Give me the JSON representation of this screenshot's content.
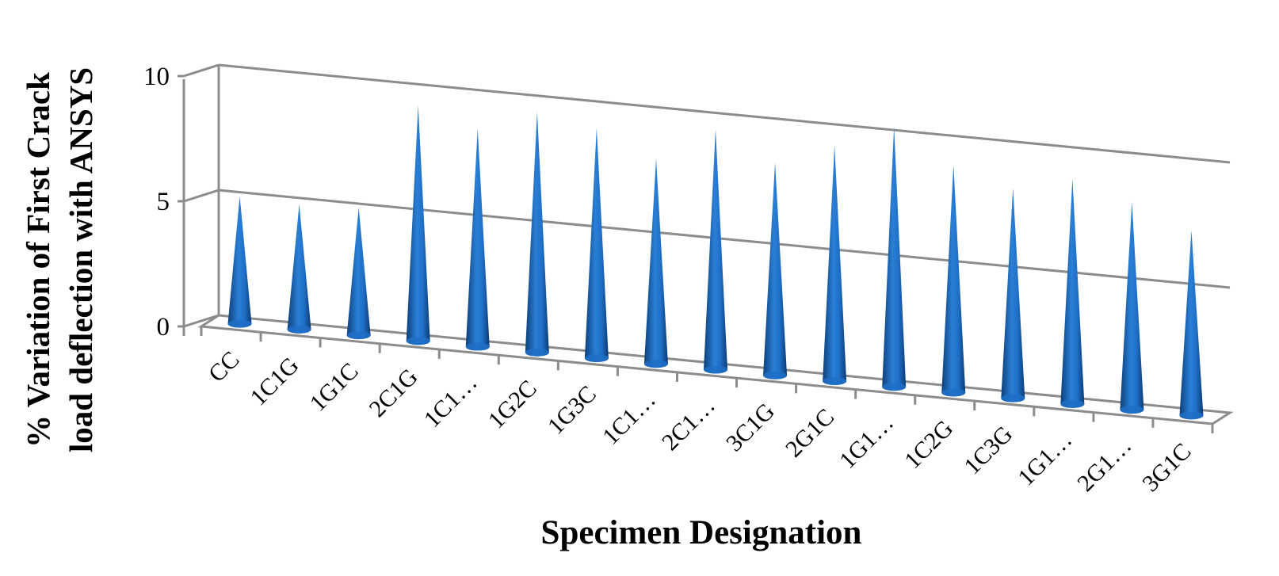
{
  "chart_data": {
    "type": "bar",
    "mark": "cone",
    "projection": "3d",
    "xlabel": "Specimen Designation",
    "ylabel": [
      "% Variation of First Crack",
      "load deflection with ANSYS"
    ],
    "categories": [
      "CC",
      "1C1G",
      "1G1C",
      "2C1G",
      "1C1…",
      "1G2C",
      "1G3C",
      "1C1…",
      "2C1…",
      "3C1G",
      "2G1C",
      "1G1…",
      "1C2G",
      "1C3G",
      "1G1…",
      "2G1…",
      "3G1C"
    ],
    "values": [
      5.1,
      5.0,
      5.1,
      9.4,
      8.7,
      9.6,
      9.2,
      8.2,
      9.6,
      8.5,
      9.4,
      10.4,
      9.1,
      8.4,
      9.0,
      8.3,
      7.4
    ],
    "ylim": [
      0,
      10
    ],
    "yticks": [
      0,
      5,
      10
    ],
    "grid": true,
    "legend": "none",
    "colors": {
      "cone_dark": "#0d3f7a",
      "cone_mid": "#1f6fc7",
      "cone_light": "#5aa3ee",
      "frame": "#8c8c8c"
    }
  }
}
